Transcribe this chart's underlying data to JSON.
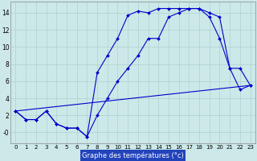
{
  "xlabel": "Graphe des températures (°c)",
  "background_color": "#cce8e8",
  "grid_color": "#a8cccc",
  "line_color": "#0000cc",
  "xlim": [
    -0.5,
    23.5
  ],
  "ylim": [
    -1.3,
    15.3
  ],
  "xticks": [
    0,
    1,
    2,
    3,
    4,
    5,
    6,
    7,
    8,
    9,
    10,
    11,
    12,
    13,
    14,
    15,
    16,
    17,
    18,
    19,
    20,
    21,
    22,
    23
  ],
  "yticks": [
    0,
    2,
    4,
    6,
    8,
    10,
    12,
    14
  ],
  "ytick_labels": [
    "-0",
    "2",
    "4",
    "6",
    "8",
    "10",
    "12",
    "14"
  ],
  "line1_x": [
    0,
    1,
    2,
    3,
    4,
    5,
    6,
    7,
    8,
    9,
    10,
    11,
    12,
    13,
    14,
    15,
    16,
    17,
    18,
    19,
    20,
    21,
    22,
    23
  ],
  "line1_y": [
    2.5,
    1.5,
    1.5,
    2.5,
    1.0,
    0.5,
    0.5,
    -0.5,
    7.0,
    9.0,
    11.0,
    13.7,
    14.2,
    14.0,
    14.5,
    14.5,
    14.5,
    14.5,
    14.5,
    13.5,
    11.0,
    7.5,
    7.5,
    5.5
  ],
  "line2_x": [
    0,
    1,
    2,
    3,
    4,
    5,
    6,
    7,
    8,
    9,
    10,
    11,
    12,
    13,
    14,
    15,
    16,
    17,
    18,
    19,
    20,
    21,
    22,
    23
  ],
  "line2_y": [
    2.5,
    1.5,
    1.5,
    2.5,
    1.0,
    0.5,
    0.5,
    -0.5,
    2.0,
    4.0,
    6.0,
    7.5,
    9.0,
    11.0,
    11.0,
    13.5,
    14.0,
    14.5,
    14.5,
    14.0,
    13.5,
    7.5,
    5.0,
    5.5
  ],
  "line3_x": [
    0,
    23
  ],
  "line3_y": [
    2.5,
    5.5
  ],
  "markersize": 2.0,
  "linewidth": 0.8,
  "xlabel_bg": "#2244bb",
  "tick_fontsize": 5.0,
  "xlabel_fontsize": 6.0
}
